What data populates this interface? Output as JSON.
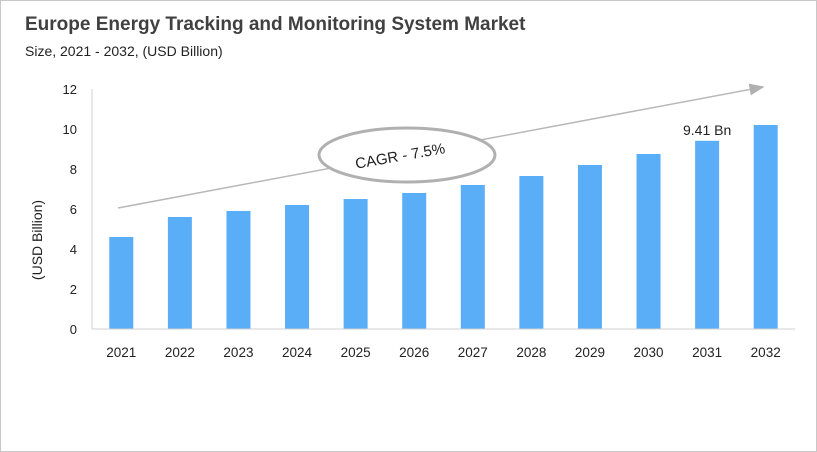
{
  "chart_data": {
    "type": "bar",
    "title": "Europe Energy Tracking and Monitoring System Market",
    "subtitle": "Size, 2021 - 2032, (USD Billion)",
    "xlabel": "",
    "ylabel": "(USD Billion)",
    "categories": [
      "2021",
      "2022",
      "2023",
      "2024",
      "2025",
      "2026",
      "2027",
      "2028",
      "2029",
      "2030",
      "2031",
      "2032"
    ],
    "values": [
      4.6,
      5.6,
      5.9,
      6.2,
      6.5,
      6.8,
      7.2,
      7.65,
      8.2,
      8.75,
      9.41,
      10.2
    ],
    "ylim": [
      0,
      12
    ],
    "yticks": [
      0,
      2,
      4,
      6,
      8,
      10,
      12
    ],
    "grid": false,
    "bar_color": "#5aaef7",
    "annotations": {
      "cagr": "CAGR - 7.5%",
      "data_label": "9.41 Bn",
      "data_label_category": "2031"
    }
  }
}
